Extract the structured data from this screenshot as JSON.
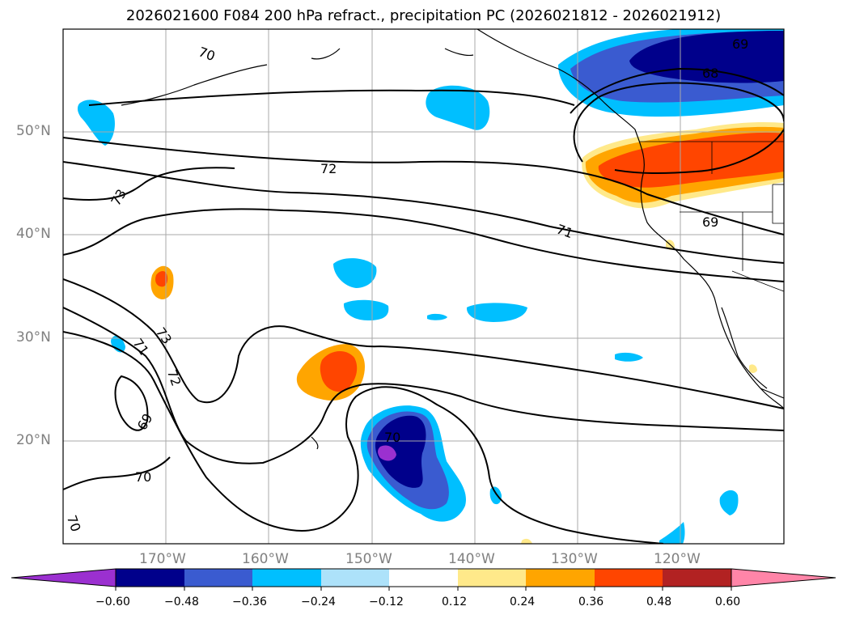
{
  "title": "2026021600 F084 200 hPa refract., precipitation PC (2026021812 - 2026021912)",
  "lat_labels": [
    "50°N",
    "40°N",
    "30°N",
    "20°N"
  ],
  "lon_labels": [
    "170°W",
    "160°W",
    "150°W",
    "140°W",
    "130°W",
    "120°W"
  ],
  "contour_labels": [
    "68",
    "69",
    "69",
    "69",
    "70",
    "70",
    "70",
    "70",
    "71",
    "71",
    "72",
    "72",
    "73",
    "73"
  ],
  "colorbar": {
    "ticks": [
      "−0.60",
      "−0.48",
      "−0.36",
      "−0.24",
      "−0.12",
      "0.12",
      "0.24",
      "0.36",
      "0.48",
      "0.60"
    ],
    "colors": [
      "#9b30d0",
      "#00008b",
      "#3a5bd0",
      "#00bfff",
      "#ade2fa",
      "#ffffff",
      "#ffe98a",
      "#ffa500",
      "#ff4500",
      "#b22222",
      "#ff85a8"
    ]
  }
}
